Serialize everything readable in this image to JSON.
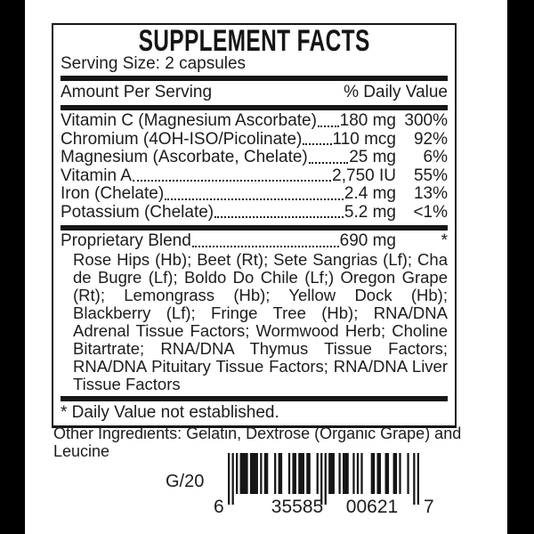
{
  "label": {
    "title": "SUPPLEMENT FACTS",
    "serving_size": "Serving Size: 2 capsules",
    "columns": {
      "amount": "Amount Per Serving",
      "dv": "% Daily Value"
    },
    "nutrients": [
      {
        "name": "Vitamin C (Magnesium Ascorbate)",
        "amount": "180 mg",
        "dv": "300%"
      },
      {
        "name": "Chromium (4OH-ISO/Picolinate)",
        "amount": "110 mcg",
        "dv": "92%"
      },
      {
        "name": "Magnesium (Ascorbate, Chelate)",
        "amount": "25 mg",
        "dv": "6%"
      },
      {
        "name": "Vitamin A",
        "amount": "2,750 IU",
        "dv": "55%"
      },
      {
        "name": "Iron (Chelate)",
        "amount": "2.4 mg",
        "dv": "13%"
      },
      {
        "name": "Potassium (Chelate)",
        "amount": "5.2 mg",
        "dv": "<1%"
      }
    ],
    "blend": {
      "name": "Proprietary Blend",
      "amount": "690 mg",
      "dv": "*",
      "ingredients": "Rose Hips (Hb); Beet (Rt); Sete Sangrias (Lf); Cha de Bugre (Lf); Boldo Do Chile (Lf;) Oregon Grape (Rt); Lemongrass (Hb); Yellow Dock (Hb); Blackberry (Lf); Fringe Tree (Hb); RNA/DNA Adrenal Tissue Factors; Wormwood Herb; Choline Bitartrate; RNA/DNA Thymus Tissue Factors; RNA/DNA Pituitary Tissue Factors; RNA/DNA Liver Tissue Factors"
    },
    "footnote": "* Daily Value not established."
  },
  "other_ingredients": "Other Ingredients: Gelatin, Dextrose (Organic Grape) and Leucine",
  "lot_code": "G/20",
  "barcode": {
    "digits": "635585006217",
    "display": {
      "first": "6",
      "left_group": "35585",
      "right_group": "00621",
      "last": "7"
    }
  },
  "colors": {
    "ink": "#1c1c1c",
    "background": "#ffffff",
    "edge_band": "#000000"
  }
}
